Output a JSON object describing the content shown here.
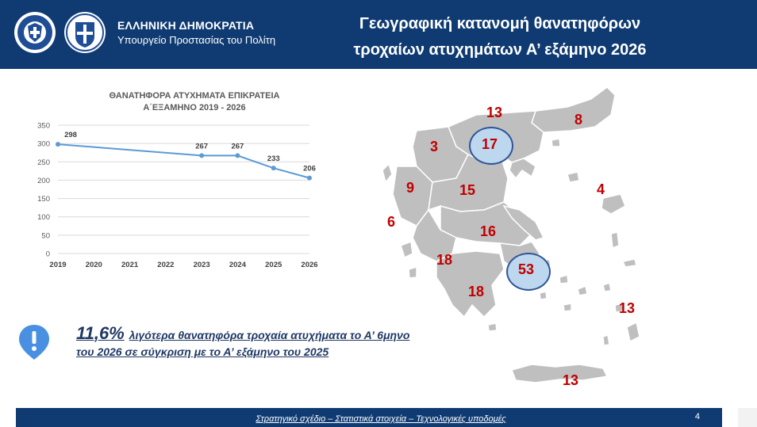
{
  "header": {
    "org_line1": "ΕΛΛΗΝΙΚΗ ΔΗΜΟΚΡΑΤΙΑ",
    "org_line2": "Υπουργείο Προστασίας του Πολίτη",
    "title_line1": "Γεωγραφική κατανομή θανατηφόρων",
    "title_line2": "τροχαίων ατυχημάτων Α’ εξάμηνο 2026"
  },
  "chart_data": {
    "type": "line",
    "title": "ΘΑΝΑΤΗΦΟΡΑ ΑΤΥΧΗΜΑΤΑ ΕΠΙΚΡΑΤΕΙΑ",
    "subtitle": "Α΄ΕΞΑΜΗΝΟ 2019 - 2026",
    "categories": [
      "2019",
      "2020",
      "2021",
      "2022",
      "2023",
      "2024",
      "2025",
      "2026"
    ],
    "values": [
      298,
      null,
      null,
      null,
      267,
      267,
      233,
      206
    ],
    "data_labels": [
      "298",
      "",
      "",
      "",
      "267",
      "267",
      "233",
      "206"
    ],
    "y_ticks": [
      "0",
      "50",
      "100",
      "150",
      "200",
      "250",
      "300",
      "350"
    ],
    "ylim": [
      0,
      350
    ],
    "grid": true,
    "line_color": "#5b9bd5"
  },
  "callout": {
    "percent": "11,6%",
    "text": "λιγότερα θανατηφόρα τροχαία ατυχήματα το Α’ 6μηνο του 2026 σε σύγκριση με το Α’ εξάμηνο του 2025"
  },
  "map": {
    "regions": [
      {
        "name": "thraki",
        "value": "8"
      },
      {
        "name": "east-macedonia",
        "value": "13"
      },
      {
        "name": "central-macedonia",
        "value": "17"
      },
      {
        "name": "west-macedonia",
        "value": "3"
      },
      {
        "name": "epirus",
        "value": "9"
      },
      {
        "name": "thessaly",
        "value": "15"
      },
      {
        "name": "north-aegean",
        "value": "4"
      },
      {
        "name": "ionian",
        "value": "6"
      },
      {
        "name": "central-greece",
        "value": "16"
      },
      {
        "name": "west-greece",
        "value": "18"
      },
      {
        "name": "attica",
        "value": "53"
      },
      {
        "name": "peloponnese",
        "value": "18"
      },
      {
        "name": "south-aegean",
        "value": "13"
      },
      {
        "name": "crete",
        "value": "13"
      }
    ],
    "number_color": "#c00000",
    "land_color": "#bfbfbf"
  },
  "footer": {
    "text": "Στρατηγικό σχέδιο – Στατιστικά στοιχεία – Τεχνολογικές υποδομές",
    "page": "4"
  }
}
